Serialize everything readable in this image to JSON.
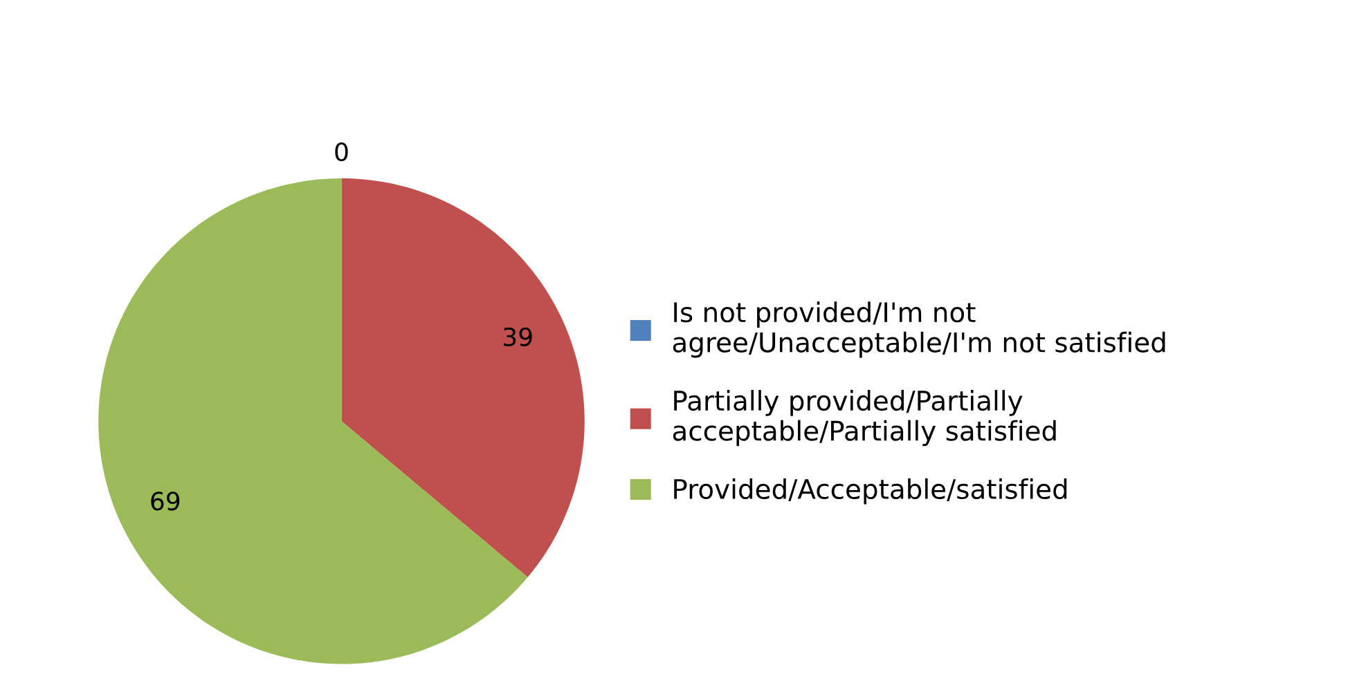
{
  "chart_data": {
    "type": "pie",
    "categories": [
      "Is not provided/I'm not agree/Unacceptable/I'm not satisfied",
      "Partially provided/Partially acceptable/Partially satisfied",
      "Provided/Acceptable/satisfied"
    ],
    "values": [
      0,
      39,
      69
    ],
    "colors": [
      "#4f81bd",
      "#c0504d",
      "#9bbb59"
    ],
    "value_labels": [
      "0",
      "39",
      "69"
    ],
    "legend": "right"
  }
}
